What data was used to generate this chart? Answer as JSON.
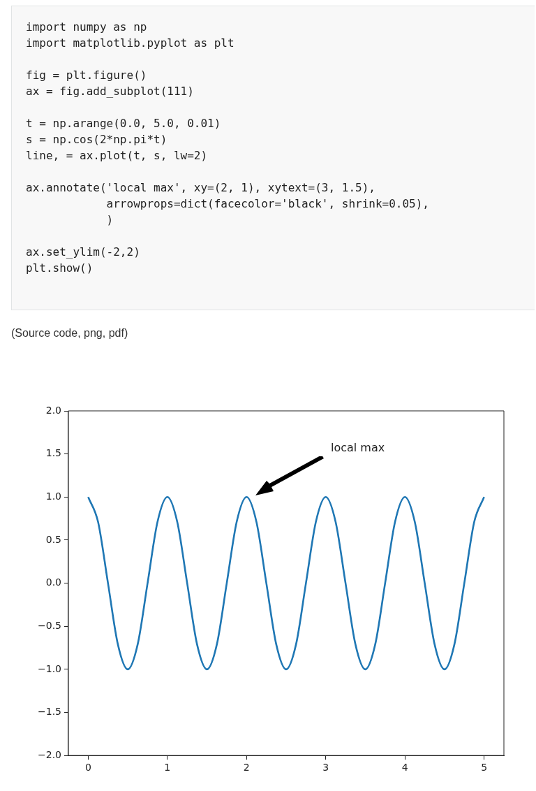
{
  "chart_data": {
    "type": "line",
    "annotations": [
      "import numpy as np\nimport matplotlib.pyplot as plt\n\nfig = plt.figure()\nax = fig.add_subplot(111)\n\nt = np.arange(0.0, 5.0, 0.01)\ns = np.cos(2*np.pi*t)\nline, = ax.plot(t, s, lw=2)\n\nax.annotate('local max', xy=(2, 1), xytext=(3, 1.5),\n            arrowprops=dict(facecolor='black', shrink=0.05),\n            )\n\nax.set_ylim(-2,2)\nplt.show()",
      "(Source code, png, pdf)",
      "local max"
    ],
    "x": [
      0,
      0.125,
      0.25,
      0.375,
      0.5,
      0.625,
      0.75,
      0.875,
      1,
      1.125,
      1.25,
      1.375,
      1.5,
      1.625,
      1.75,
      1.875,
      2,
      2.125,
      2.25,
      2.375,
      2.5,
      2.625,
      2.75,
      2.875,
      3,
      3.125,
      3.25,
      3.375,
      3.5,
      3.625,
      3.75,
      3.875,
      4,
      4.125,
      4.25,
      4.375,
      4.5,
      4.625,
      4.75,
      4.875,
      5
    ],
    "series": [
      {
        "color": "#1f77b4",
        "values": [
          1,
          0.71,
          0,
          -0.71,
          -1,
          -0.71,
          0,
          0.71,
          1,
          0.71,
          0,
          -0.71,
          -1,
          -0.71,
          0,
          0.71,
          1,
          0.71,
          0,
          -0.71,
          -1,
          -0.71,
          0,
          0.71,
          1,
          0.71,
          0,
          -0.71,
          -1,
          -0.71,
          0,
          0.71,
          1,
          0.71,
          0,
          -0.71,
          -1,
          -0.71,
          0,
          0.71,
          1
        ]
      }
    ],
    "xlim": [
      -0.25,
      5.25
    ],
    "xticks": [
      0,
      1,
      2,
      3,
      4,
      5
    ],
    "ylim": [
      -2,
      2
    ],
    "yticks": [
      {
        "value": -2,
        "label": "−2.0"
      },
      {
        "value": -1.5,
        "label": "−1.5"
      },
      {
        "value": -1,
        "label": "−1.0"
      },
      {
        "value": -0.5,
        "label": "−0.5"
      },
      {
        "value": 0,
        "label": "0.0"
      },
      {
        "value": 0.5,
        "label": "0.5"
      },
      {
        "value": 1,
        "label": "1.0"
      },
      {
        "value": 1.5,
        "label": "1.5"
      },
      {
        "value": 2,
        "label": "2.0"
      }
    ],
    "grid": false,
    "legend": false,
    "marker": "none",
    "line_style": "solid"
  }
}
